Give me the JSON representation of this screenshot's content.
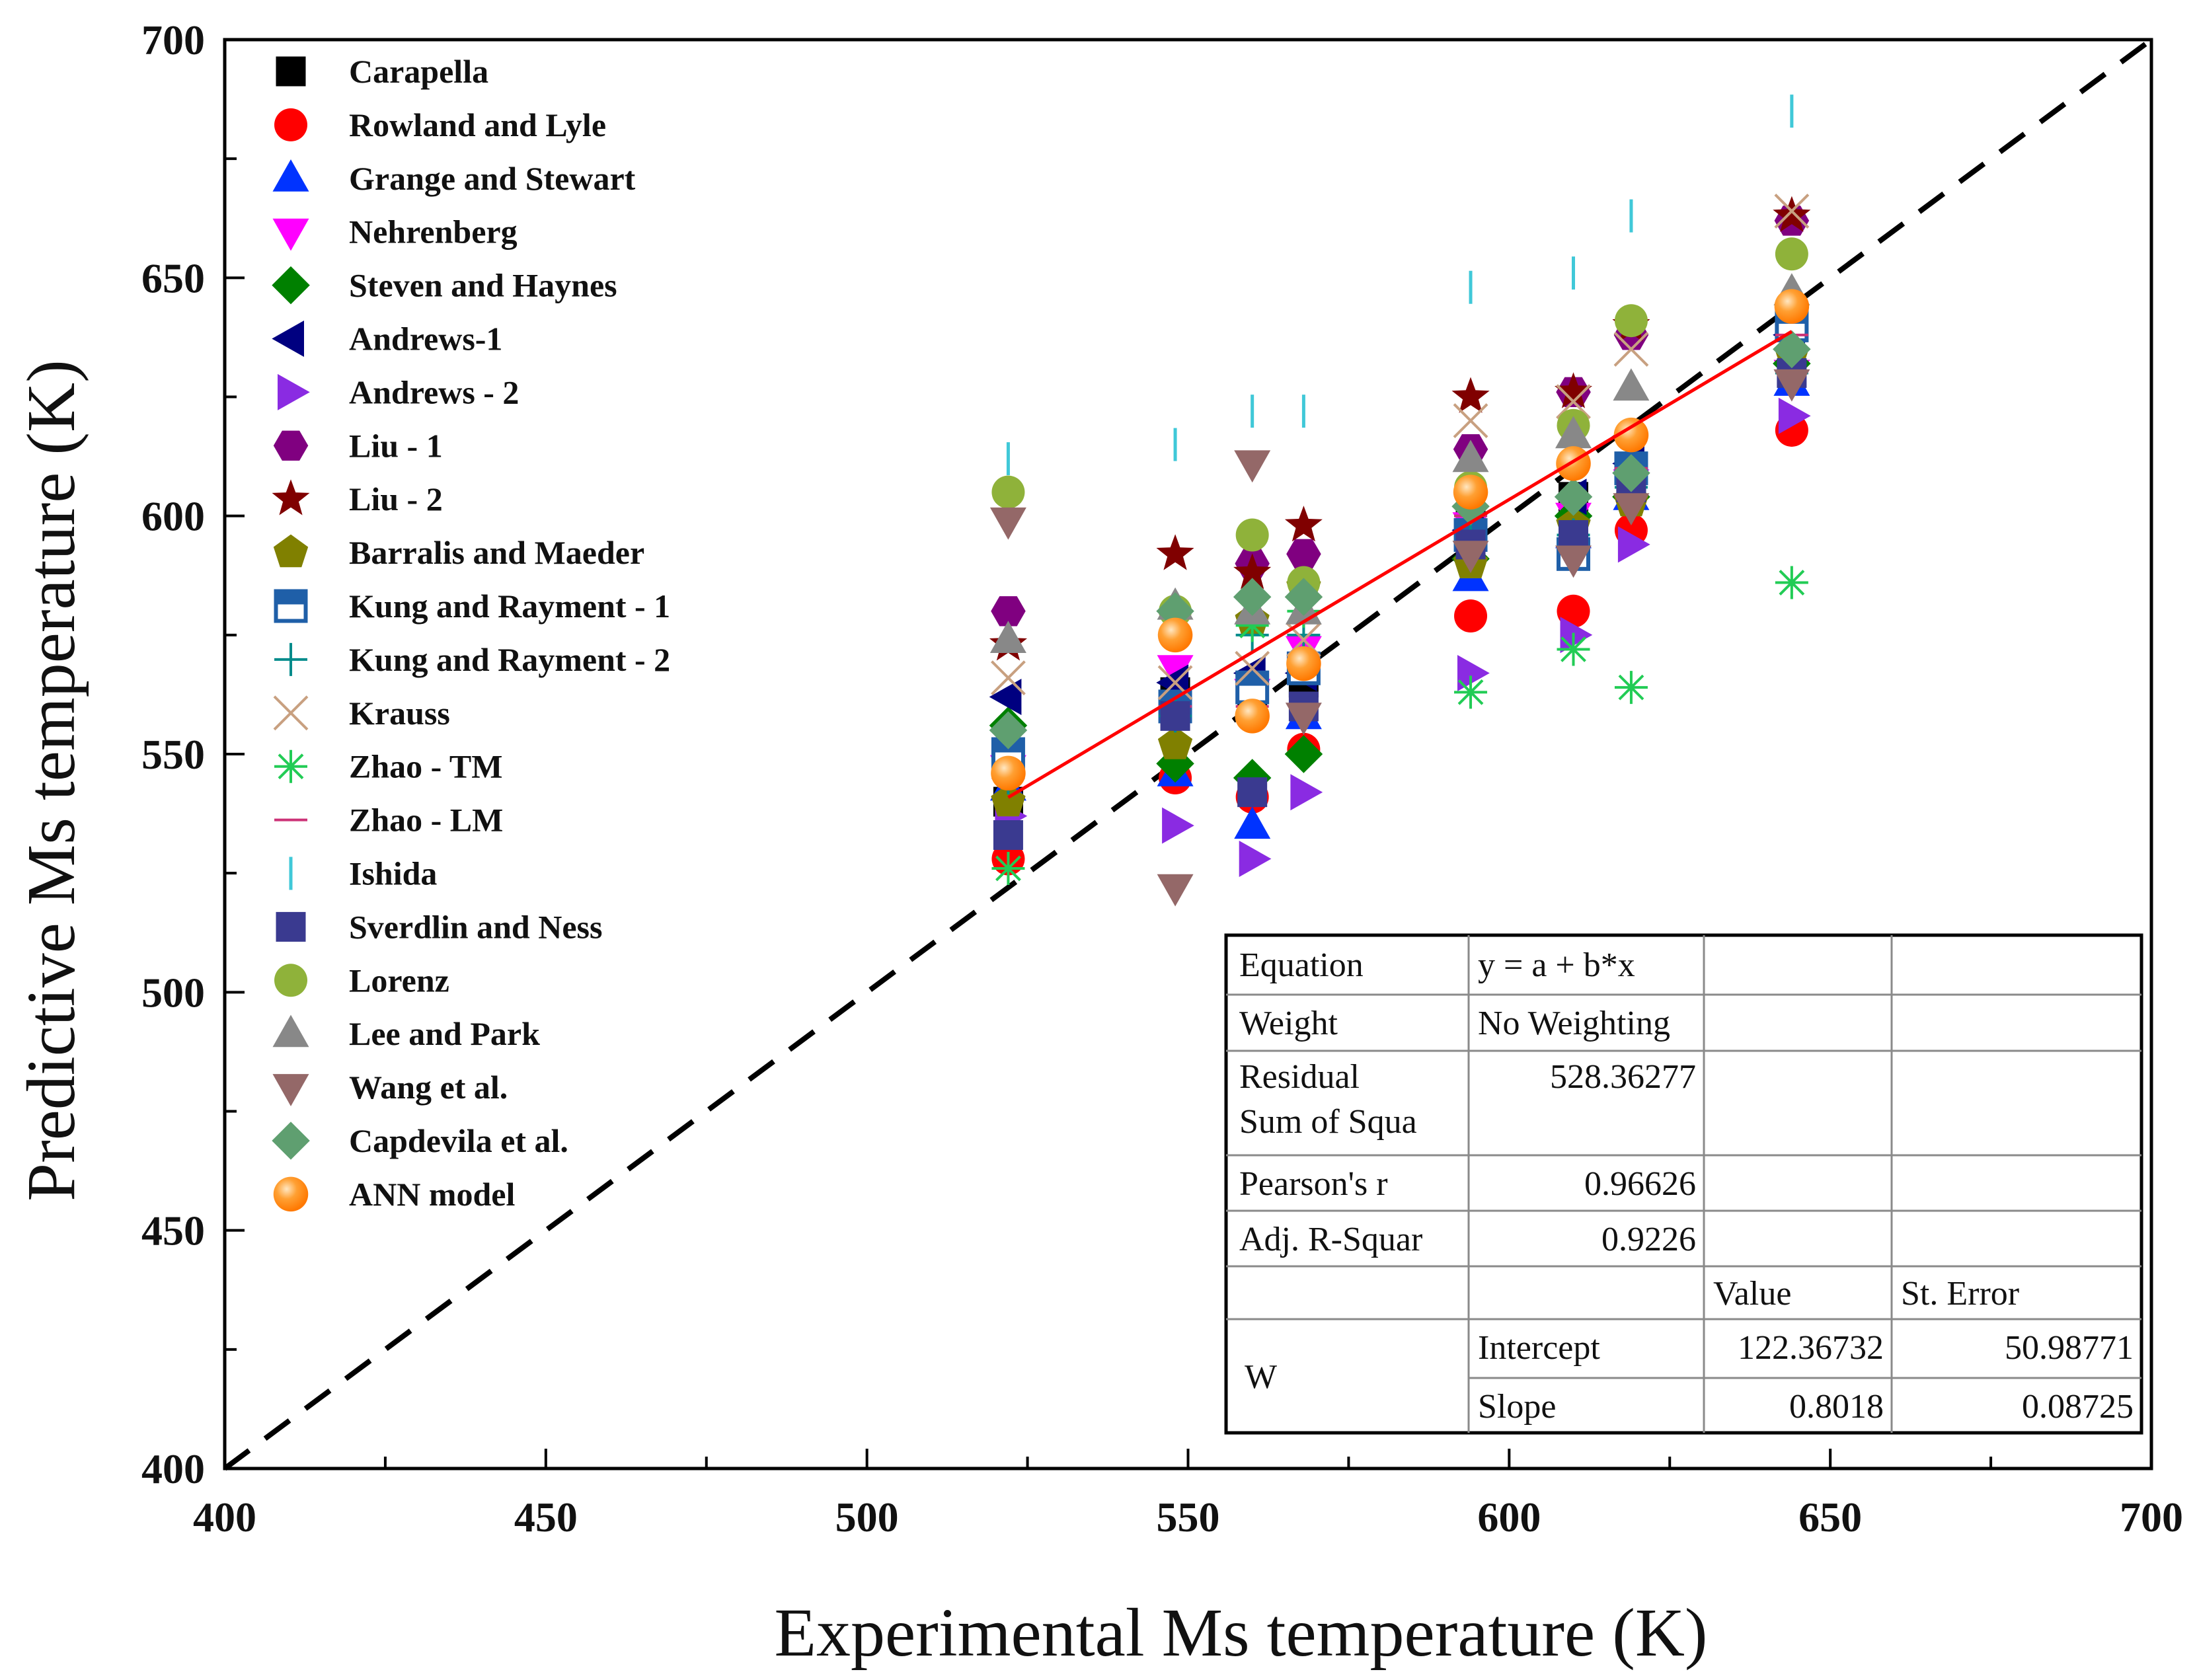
{
  "chart_data": {
    "type": "scatter",
    "title": "",
    "xlabel": "Experimental Ms temperature (K)",
    "ylabel": "Predictive Ms temperature (K)",
    "xlim": [
      400,
      700
    ],
    "ylim": [
      400,
      700
    ],
    "xticks": [
      "400",
      "450",
      "500",
      "550",
      "600",
      "650",
      "700"
    ],
    "yticks": [
      "400",
      "450",
      "500",
      "550",
      "600",
      "650",
      "700"
    ],
    "grid": false,
    "legend_position": "top-left",
    "x_values": [
      522,
      548,
      560,
      568,
      594,
      610,
      619,
      644
    ],
    "reference_line": {
      "name": "y = x",
      "style": "dashed",
      "color": "#000000",
      "points": [
        [
          400,
          400
        ],
        [
          700,
          700
        ]
      ]
    },
    "fit_line": {
      "name": "Linear fit",
      "color": "#ff0000",
      "intercept": 122.36732,
      "slope": 0.8018,
      "x_range": [
        522,
        644
      ]
    },
    "series": [
      {
        "name": "Carapella",
        "marker": "square",
        "color": "#000000",
        "values": [
          540,
          563,
          560,
          565,
          598,
          604,
          608,
          640
        ]
      },
      {
        "name": "Rowland and Lyle",
        "marker": "circle",
        "color": "#ff0000",
        "values": [
          528,
          545,
          541,
          551,
          579,
          580,
          597,
          618
        ]
      },
      {
        "name": "Grange and Stewart",
        "marker": "triangle-up",
        "color": "#0033ff",
        "values": [
          543,
          546,
          535,
          558,
          587,
          596,
          604,
          628
        ]
      },
      {
        "name": "Nehrenberg",
        "marker": "triangle-down",
        "color": "#ff00ff",
        "values": [
          547,
          568,
          563,
          572,
          598,
          600,
          607,
          630
        ]
      },
      {
        "name": "Steven and Haynes",
        "marker": "diamond",
        "color": "#008000",
        "values": [
          556,
          548,
          545,
          550,
          591,
          600,
          604,
          632
        ]
      },
      {
        "name": "Andrews-1",
        "marker": "triangle-left",
        "color": "#000080",
        "values": [
          562,
          565,
          567,
          567,
          597,
          604,
          611,
          638
        ]
      },
      {
        "name": "Andrews - 2",
        "marker": "triangle-right",
        "color": "#8a2be2",
        "values": [
          537,
          535,
          528,
          542,
          567,
          575,
          594,
          621
        ]
      },
      {
        "name": "Liu - 1",
        "marker": "hexagon",
        "color": "#800080",
        "values": [
          580,
          575,
          590,
          592,
          614,
          626,
          638,
          662
        ]
      },
      {
        "name": "Liu - 2",
        "marker": "star",
        "color": "#800000",
        "values": [
          573,
          592,
          588,
          598,
          625,
          626,
          640,
          663
        ]
      },
      {
        "name": "Barralis and Maeder",
        "marker": "pentagon",
        "color": "#808000",
        "values": [
          540,
          552,
          578,
          585,
          590,
          598,
          603,
          634
        ]
      },
      {
        "name": "Kung and Rayment - 1",
        "marker": "square-half",
        "color": "#1f5fa8",
        "values": [
          550,
          560,
          564,
          568,
          596,
          592,
          610,
          640
        ]
      },
      {
        "name": "Kung and Rayment - 2",
        "marker": "plus",
        "color": "#008b8b",
        "values": [
          545,
          558,
          575,
          575,
          600,
          596,
          606,
          630
        ]
      },
      {
        "name": "Krauss",
        "marker": "x",
        "color": "#c8a080",
        "values": [
          566,
          565,
          568,
          574,
          620,
          624,
          635,
          664
        ]
      },
      {
        "name": "Zhao - TM",
        "marker": "asterisk",
        "color": "#22cc55",
        "values": [
          526,
          575,
          577,
          580,
          563,
          572,
          564,
          586
        ]
      },
      {
        "name": "Zhao - LM",
        "marker": "dash",
        "color": "#cc3377",
        "values": [
          545,
          560,
          560,
          570,
          600,
          604,
          610,
          638
        ]
      },
      {
        "name": "Ishida",
        "marker": "vline",
        "color": "#40c8d8",
        "values": [
          612,
          615,
          622,
          622,
          648,
          651,
          663,
          685
        ]
      },
      {
        "name": "Sverdlin and Ness",
        "marker": "square",
        "color": "#3a3a90",
        "values": [
          533,
          558,
          542,
          560,
          594,
          596,
          606,
          630
        ]
      },
      {
        "name": "Lorenz",
        "marker": "circle",
        "color": "#8fb23a",
        "values": [
          605,
          580,
          596,
          586,
          606,
          619,
          641,
          655
        ]
      },
      {
        "name": "Lee and Park",
        "marker": "triangle-up",
        "color": "#888888",
        "values": [
          574,
          581,
          580,
          580,
          612,
          617,
          627,
          647
        ]
      },
      {
        "name": "Wang et al.",
        "marker": "triangle-down",
        "color": "#946868",
        "values": [
          599,
          522,
          611,
          558,
          592,
          591,
          602,
          628
        ]
      },
      {
        "name": "Capdevila et al.",
        "marker": "diamond",
        "color": "#5f9f70",
        "values": [
          555,
          580,
          583,
          583,
          602,
          604,
          609,
          635
        ]
      },
      {
        "name": "ANN model",
        "marker": "ball",
        "color": "#ff8a1e",
        "values": [
          546,
          575,
          558,
          569,
          605,
          611,
          617,
          644
        ]
      }
    ],
    "stats_table": {
      "rows": [
        [
          "Equation",
          "y = a + b*x",
          "",
          ""
        ],
        [
          "Weight",
          "No Weighting",
          "",
          ""
        ],
        [
          "Residual Sum of Squa",
          "528.36277",
          "",
          ""
        ],
        [
          "Pearson's r",
          "0.96626",
          "",
          ""
        ],
        [
          "Adj. R-Squar",
          "0.9226",
          "",
          ""
        ],
        [
          "",
          "",
          "Value",
          "St. Error"
        ],
        [
          "W",
          "Intercept",
          "122.36732",
          "50.98771"
        ],
        [
          "",
          "Slope",
          "0.8018",
          "0.08725"
        ]
      ]
    }
  }
}
